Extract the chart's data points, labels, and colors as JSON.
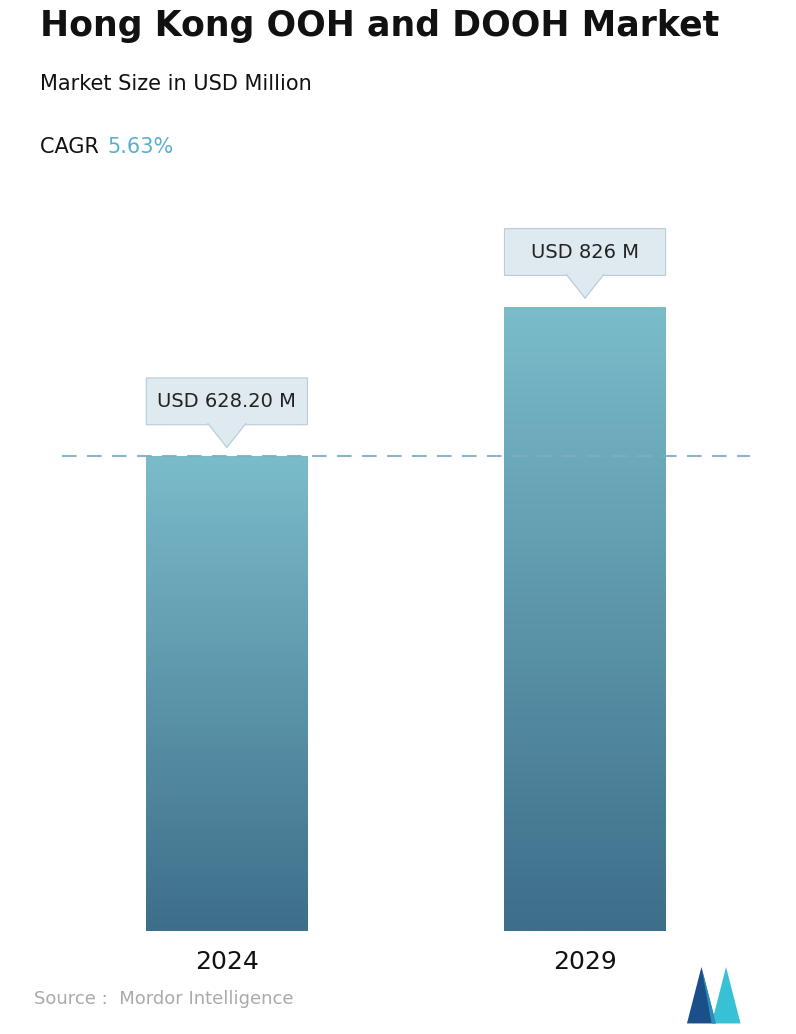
{
  "title": "Hong Kong OOH and DOOH Market",
  "subtitle": "Market Size in USD Million",
  "cagr_label": "CAGR ",
  "cagr_value": "5.63%",
  "cagr_color": "#5aaed0",
  "categories": [
    "2024",
    "2029"
  ],
  "values": [
    628.2,
    826
  ],
  "bar_labels": [
    "USD 628.20 M",
    "USD 826 M"
  ],
  "bar_top_color": "#7bbcca",
  "bar_bottom_color": "#3d6e8a",
  "dashed_line_color": "#7aafc0",
  "dashed_line_y": 628.2,
  "background_color": "#ffffff",
  "source_text": "Source :  Mordor Intelligence",
  "source_color": "#aaaaaa",
  "ylim": [
    0,
    1000
  ],
  "bar_width": 0.45
}
